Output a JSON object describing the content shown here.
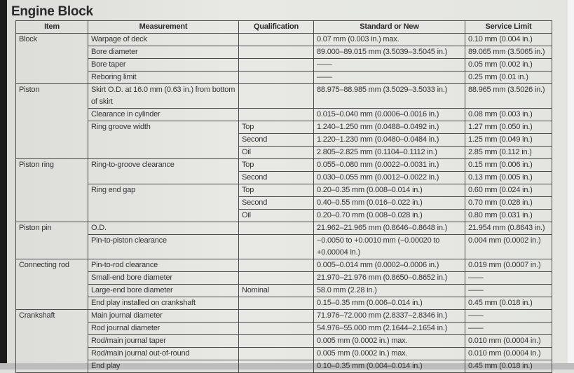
{
  "title": "Engine Block",
  "columns": [
    "Item",
    "Measurement",
    "Qualification",
    "Standard or New",
    "Service Limit"
  ],
  "items": [
    {
      "name": "Block",
      "measurements": [
        {
          "name": "Warpage of deck",
          "rows": [
            {
              "qualification": "",
              "standard": "0.07 mm (0.003 in.) max.",
              "limit": "0.10 mm (0.004 in.)"
            }
          ]
        },
        {
          "name": "Bore diameter",
          "rows": [
            {
              "qualification": "",
              "standard": "89.000–89.015 mm (3.5039–3.5045 in.)",
              "limit": "89.065 mm (3.5065 in.)"
            }
          ]
        },
        {
          "name": "Bore taper",
          "rows": [
            {
              "qualification": "",
              "standard": "——",
              "limit": "0.05 mm (0.002 in.)"
            }
          ]
        },
        {
          "name": "Reboring limit",
          "rows": [
            {
              "qualification": "",
              "standard": "——",
              "limit": "0.25 mm (0.01 in.)"
            }
          ]
        }
      ]
    },
    {
      "name": "Piston",
      "measurements": [
        {
          "name": "Skirt O.D. at 16.0 mm (0.63 in.) from bottom of skirt",
          "rows": [
            {
              "qualification": "",
              "standard": "88.975–88.985 mm (3.5029–3.5033 in.)",
              "limit": "88.965 mm (3.5026 in.)"
            }
          ]
        },
        {
          "name": "Clearance in cylinder",
          "rows": [
            {
              "qualification": "",
              "standard": "0.015–0.040 mm (0.0006–0.0016 in.)",
              "limit": "0.08 mm (0.003 in.)"
            }
          ]
        },
        {
          "name": "Ring groove width",
          "rows": [
            {
              "qualification": "Top",
              "standard": "1.240–1.250 mm (0.0488–0.0492 in.)",
              "limit": "1.27 mm (0.050 in.)"
            },
            {
              "qualification": "Second",
              "standard": "1.220–1.230 mm (0.0480–0.0484 in.)",
              "limit": "1.25 mm (0.049 in.)"
            },
            {
              "qualification": "Oil",
              "standard": "2.805–2.825 mm (0.1104–0.1112 in.)",
              "limit": "2.85 mm (0.112 in.)"
            }
          ]
        }
      ]
    },
    {
      "name": "Piston ring",
      "measurements": [
        {
          "name": "Ring-to-groove clearance",
          "rows": [
            {
              "qualification": "Top",
              "standard": "0.055–0.080 mm (0.0022–0.0031 in.)",
              "limit": "0.15 mm (0.006 in.)"
            },
            {
              "qualification": "Second",
              "standard": "0.030–0.055 mm (0.0012–0.0022 in.)",
              "limit": "0.13 mm (0.005 in.)"
            }
          ]
        },
        {
          "name": "Ring end gap",
          "rows": [
            {
              "qualification": "Top",
              "standard": "0.20–0.35 mm (0.008–0.014 in.)",
              "limit": "0.60 mm (0.024 in.)"
            },
            {
              "qualification": "Second",
              "standard": "0.40–0.55 mm (0.016–0.022 in.)",
              "limit": "0.70 mm (0.028 in.)"
            },
            {
              "qualification": "Oil",
              "standard": "0.20–0.70 mm (0.008–0.028 in.)",
              "limit": "0.80 mm (0.031 in.)"
            }
          ]
        }
      ]
    },
    {
      "name": "Piston pin",
      "measurements": [
        {
          "name": "O.D.",
          "rows": [
            {
              "qualification": "",
              "standard": "21.962–21.965 mm (0.8646–0.8648 in.)",
              "limit": "21.954 mm (0.8643 in.)"
            }
          ]
        },
        {
          "name": "Pin-to-piston clearance",
          "rows": [
            {
              "qualification": "",
              "standard": "−0.0050 to +0.0010 mm (−0.00020 to +0.00004 in.)",
              "limit": "0.004 mm (0.0002 in.)"
            }
          ]
        }
      ]
    },
    {
      "name": "Connecting rod",
      "measurements": [
        {
          "name": "Pin-to-rod clearance",
          "rows": [
            {
              "qualification": "",
              "standard": "0.005–0.014 mm (0.0002–0.0006 in.)",
              "limit": "0.019 mm (0.0007 in.)"
            }
          ]
        },
        {
          "name": "Small-end bore diameter",
          "rows": [
            {
              "qualification": "",
              "standard": "21.970–21.976 mm (0.8650–0.8652 in.)",
              "limit": "——"
            }
          ]
        },
        {
          "name": "Large-end bore diameter",
          "rows": [
            {
              "qualification": "Nominal",
              "standard": "58.0 mm (2.28 in.)",
              "limit": "——"
            }
          ]
        },
        {
          "name": "End play installed on crankshaft",
          "rows": [
            {
              "qualification": "",
              "standard": "0.15–0.35 mm (0.006–0.014 in.)",
              "limit": "0.45 mm (0.018 in.)"
            }
          ]
        }
      ]
    },
    {
      "name": "Crankshaft",
      "measurements": [
        {
          "name": "Main journal diameter",
          "rows": [
            {
              "qualification": "",
              "standard": "71.976–72.000 mm (2.8337–2.8346 in.)",
              "limit": "——"
            }
          ]
        },
        {
          "name": "Rod journal diameter",
          "rows": [
            {
              "qualification": "",
              "standard": "54.976–55.000 mm (2.1644–2.1654 in.)",
              "limit": "——"
            }
          ]
        },
        {
          "name": "Rod/main journal taper",
          "rows": [
            {
              "qualification": "",
              "standard": "0.005 mm (0.0002 in.) max.",
              "limit": "0.010 mm (0.0004 in.)"
            }
          ]
        },
        {
          "name": "Rod/main journal out-of-round",
          "rows": [
            {
              "qualification": "",
              "standard": "0.005 mm (0.0002 in.) max.",
              "limit": "0.010 mm (0.0004 in.)"
            }
          ]
        },
        {
          "name": "End play",
          "rows": [
            {
              "qualification": "",
              "standard": "0.10–0.35 mm (0.004–0.014 in.)",
              "limit": "0.45 mm (0.018 in.)"
            }
          ]
        }
      ]
    }
  ]
}
